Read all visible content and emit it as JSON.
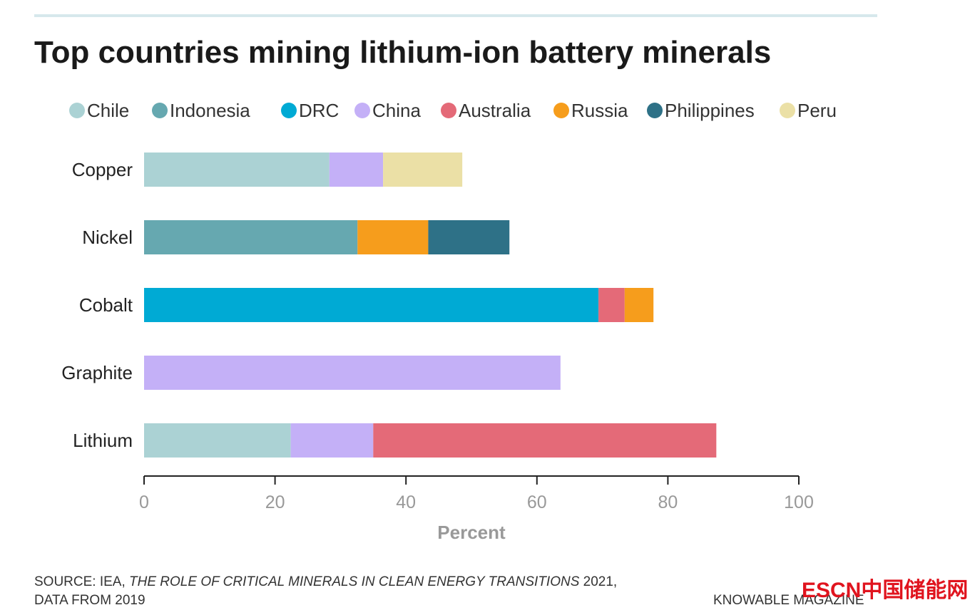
{
  "chart_data": {
    "type": "bar",
    "orientation": "horizontal",
    "stacked": true,
    "title": "Top countries mining lithium-ion battery minerals",
    "xlabel": "Percent",
    "ylabel": "",
    "xlim": [
      0,
      100
    ],
    "xticks": [
      "0",
      "20",
      "40",
      "60",
      "80",
      "100"
    ],
    "grid": false,
    "legend_placement": "top",
    "categories": [
      "Copper",
      "Nickel",
      "Cobalt",
      "Graphite",
      "Lithium"
    ],
    "series": [
      {
        "name": "Chile",
        "color": "#abd2d4",
        "values": [
          28.3,
          0,
          0,
          0,
          22.4
        ]
      },
      {
        "name": "Indonesia",
        "color": "#66a8b0",
        "values": [
          0,
          32.6,
          0,
          0,
          0
        ]
      },
      {
        "name": "DRC",
        "color": "#00aad4",
        "values": [
          0,
          0,
          69.4,
          0,
          0
        ]
      },
      {
        "name": "China",
        "color": "#c4b0f7",
        "values": [
          8.2,
          0,
          0,
          63.6,
          12.6
        ]
      },
      {
        "name": "Australia",
        "color": "#e46a78",
        "values": [
          0,
          0,
          4.0,
          0,
          52.4
        ]
      },
      {
        "name": "Russia",
        "color": "#f69d1c",
        "values": [
          0,
          10.8,
          4.4,
          0,
          0
        ]
      },
      {
        "name": "Philippines",
        "color": "#2e7187",
        "values": [
          0,
          12.4,
          0,
          0,
          0
        ]
      },
      {
        "name": "Peru",
        "color": "#ebe0a6",
        "values": [
          12.1,
          0,
          0,
          0,
          0
        ]
      }
    ]
  },
  "footer": {
    "source_prefix": "SOURCE: IEA, ",
    "source_title": "THE ROLE OF CRITICAL MINERALS IN CLEAN ENERGY TRANSITIONS",
    "source_suffix": " 2021,",
    "source_line2": "DATA FROM 2019",
    "credit": "KNOWABLE MAGAZINE",
    "watermark": "ESCN中国储能网"
  }
}
